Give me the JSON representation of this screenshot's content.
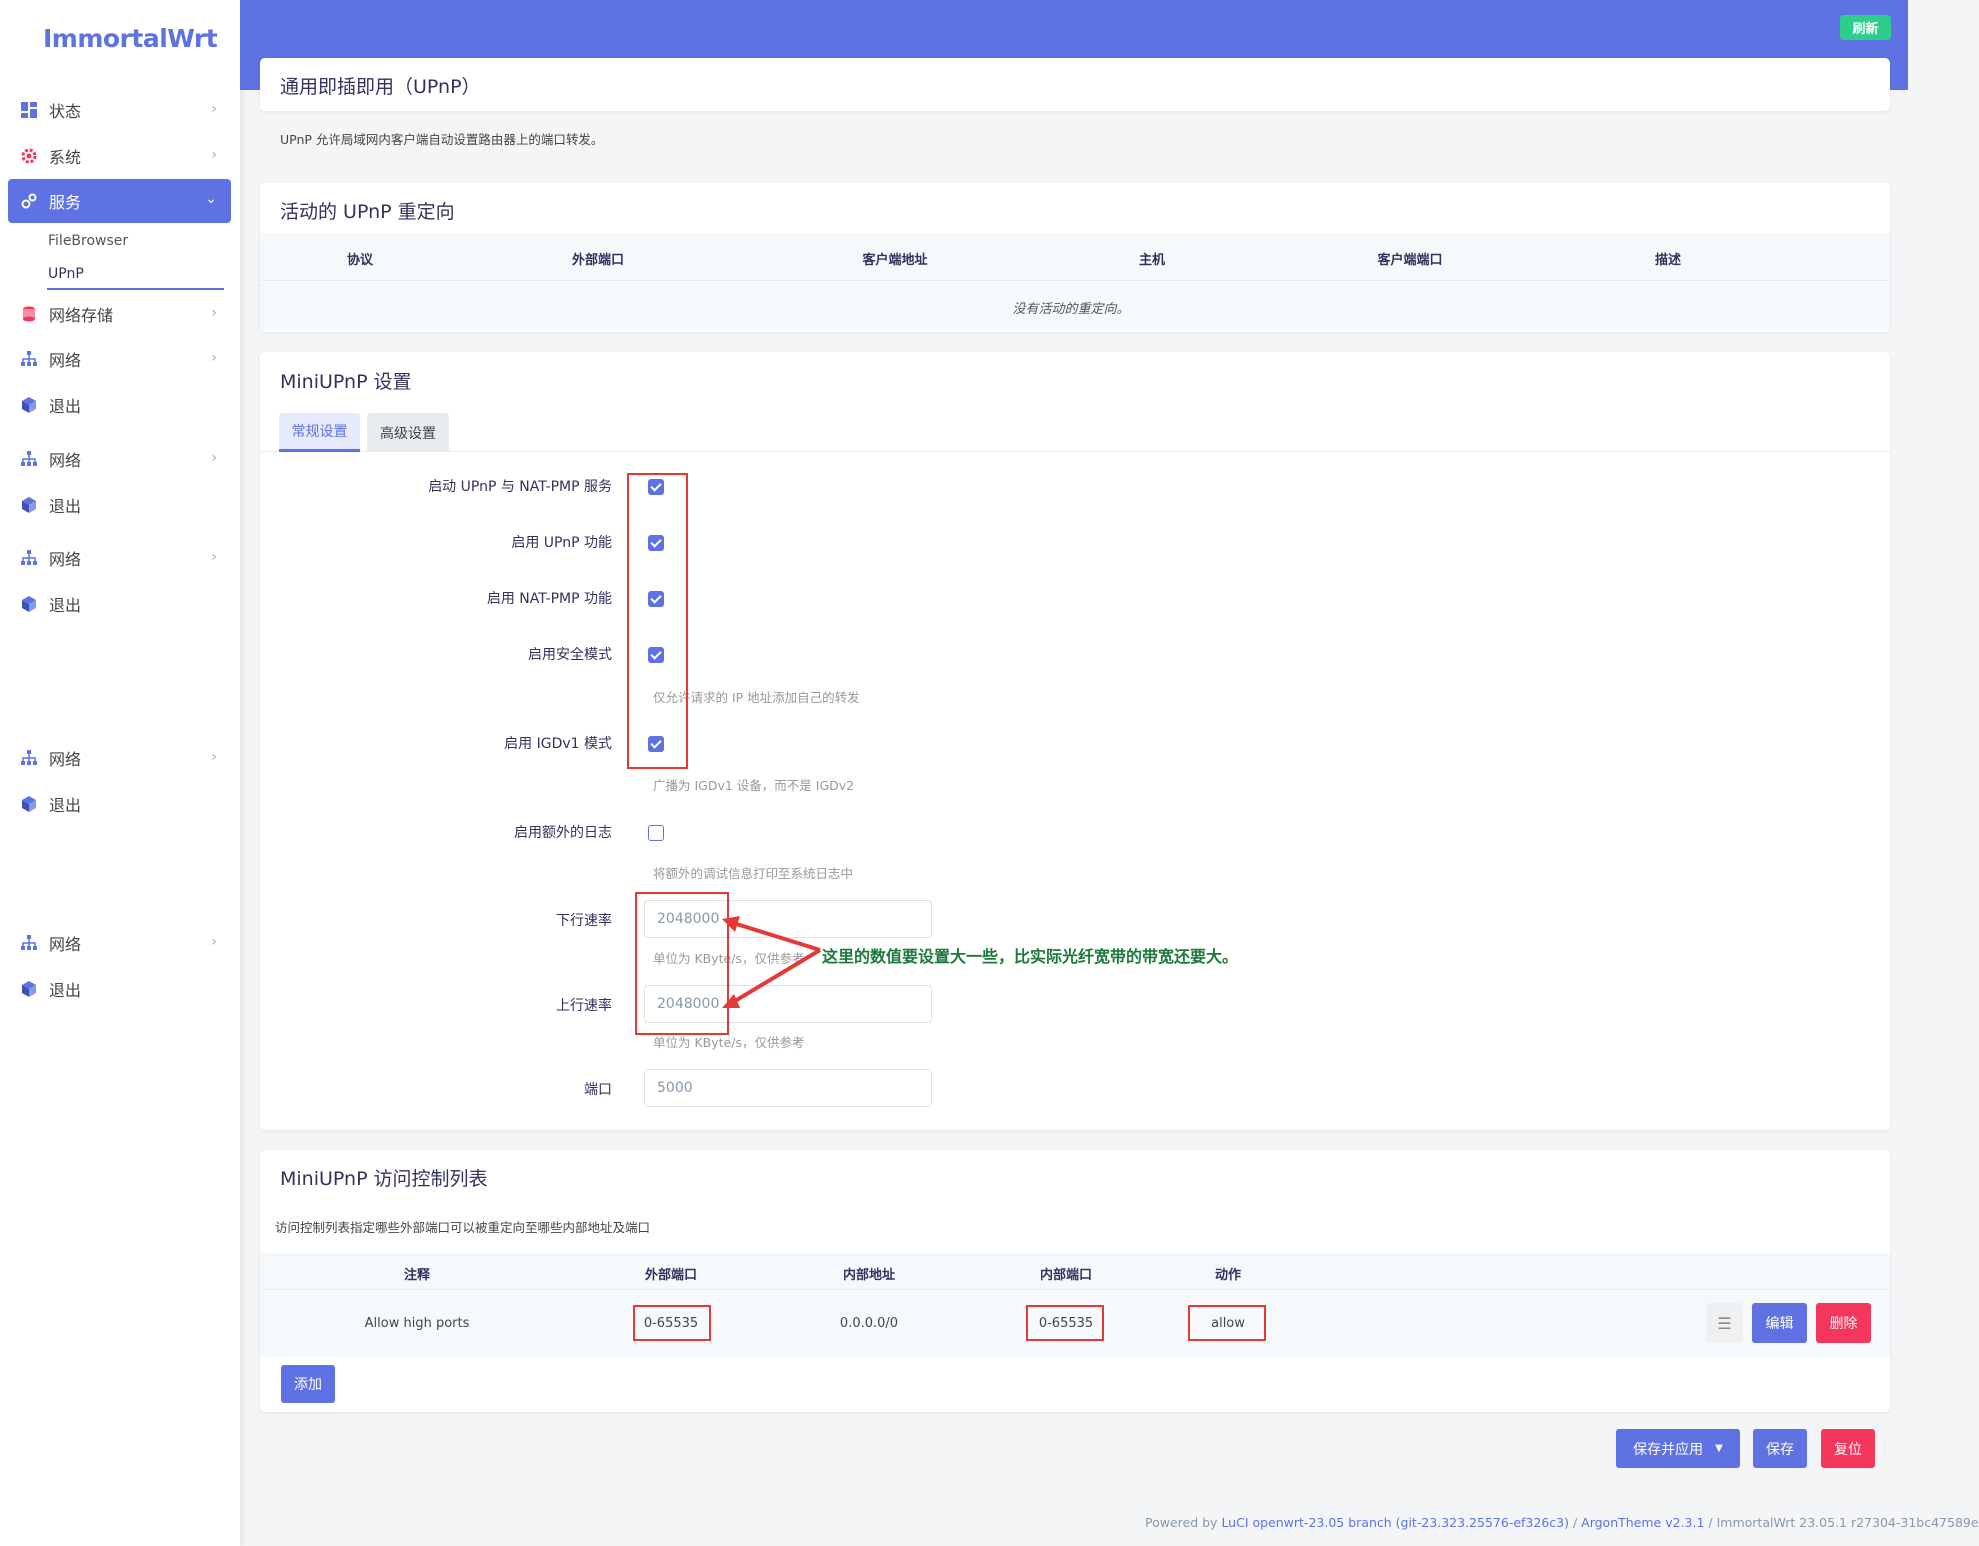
{
  "app": {
    "logo": "ImmortalWrt",
    "refresh_label": "刷新"
  },
  "sidebar": {
    "items": [
      {
        "label": "状态",
        "icon": "dashboard-icon"
      },
      {
        "label": "系统",
        "icon": "gear-icon"
      },
      {
        "label": "服务",
        "icon": "services-icon"
      },
      {
        "label": "网络存储",
        "icon": "storage-icon"
      },
      {
        "label": "网络",
        "icon": "network-icon"
      },
      {
        "label": "退出",
        "icon": "logout-cube-icon"
      },
      {
        "label": "网络",
        "icon": "network-icon"
      },
      {
        "label": "退出",
        "icon": "logout-cube-icon"
      },
      {
        "label": "网络",
        "icon": "network-icon"
      },
      {
        "label": "退出",
        "icon": "logout-cube-icon"
      },
      {
        "label": "网络",
        "icon": "network-icon"
      },
      {
        "label": "退出",
        "icon": "logout-cube-icon"
      },
      {
        "label": "网络",
        "icon": "network-icon"
      },
      {
        "label": "退出",
        "icon": "logout-cube-icon"
      }
    ],
    "sub_items": [
      "FileBrowser",
      "UPnP"
    ]
  },
  "page": {
    "title": "通用即插即用（UPnP）",
    "description": "UPnP 允许局域网内客户端自动设置路由器上的端口转发。"
  },
  "redirects": {
    "title": "活动的 UPnP 重定向",
    "headers": [
      "协议",
      "外部端口",
      "客户端地址",
      "主机",
      "客户端端口",
      "描述"
    ],
    "empty": "没有活动的重定向。"
  },
  "settings": {
    "title": "MiniUPnP 设置",
    "tabs": [
      "常规设置",
      "高级设置"
    ],
    "fields": {
      "enable_service": "启动 UPnP 与 NAT-PMP 服务",
      "enable_upnp": "启用 UPnP 功能",
      "enable_natpmp": "启用 NAT-PMP 功能",
      "secure_mode": "启用安全模式",
      "secure_mode_hint": "仅允许请求的 IP 地址添加自己的转发",
      "igdv1": "启用 IGDv1 模式",
      "igdv1_hint": "广播为 IGDv1 设备，而不是 IGDv2",
      "extra_log": "启用额外的日志",
      "extra_log_hint": "将额外的调试信息打印至系统日志中",
      "download": "下行速率",
      "download_value": "2048000",
      "download_hint": "单位为 KByte/s，仅供参考",
      "upload": "上行速率",
      "upload_value": "2048000",
      "upload_hint": "单位为 KByte/s，仅供参考",
      "port": "端口",
      "port_placeholder": "5000"
    },
    "annotation": "这里的数值要设置大一些，比实际光纤宽带的带宽还要大。"
  },
  "acl": {
    "title": "MiniUPnP 访问控制列表",
    "description": "访问控制列表指定哪些外部端口可以被重定向至哪些内部地址及端口",
    "headers": [
      "注释",
      "外部端口",
      "内部地址",
      "内部端口",
      "动作"
    ],
    "rows": [
      {
        "comment": "Allow high ports",
        "ext_port": "0-65535",
        "int_addr": "0.0.0.0/0",
        "int_port": "0-65535",
        "action": "allow"
      }
    ],
    "edit_label": "编辑",
    "delete_label": "删除",
    "add_label": "添加"
  },
  "actions": {
    "save_apply": "保存并应用",
    "save": "保存",
    "reset": "复位"
  },
  "footer": {
    "prefix": "Powered by ",
    "luci": "LuCI openwrt-23.05 branch (git-23.323.25576-ef326c3)",
    "sep1": " / ",
    "theme": "ArgonTheme v2.3.1",
    "sep2": " / ",
    "version": "ImmortalWrt 23.05.1 r27304-31bc47589e"
  }
}
